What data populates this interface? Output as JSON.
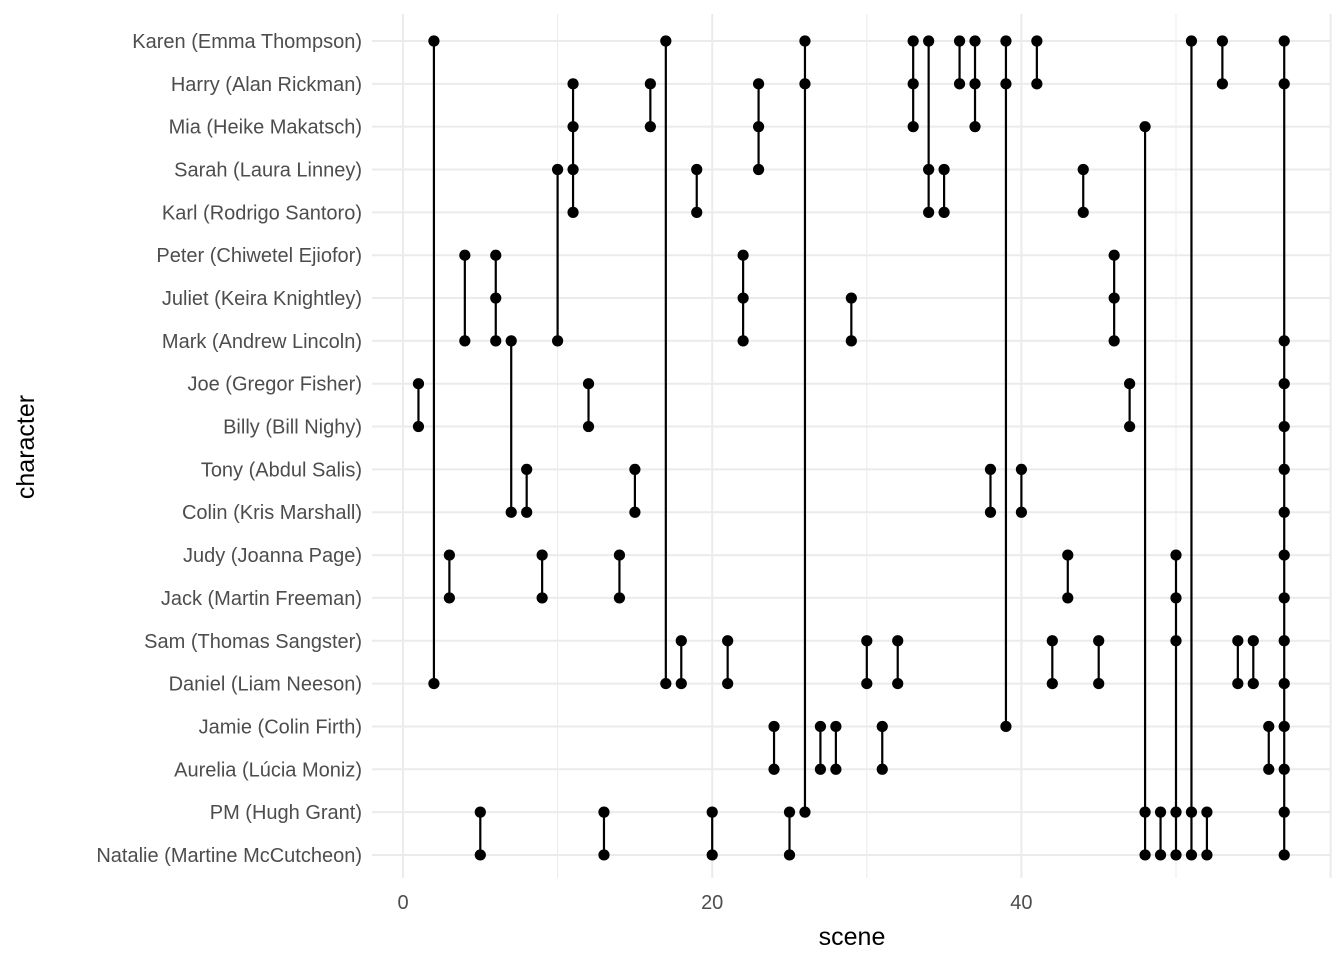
{
  "chart_data": {
    "type": "dot-dumbbell",
    "xlabel": "scene",
    "ylabel": "character",
    "xlim": [
      0,
      57
    ],
    "x_ticks": [
      0,
      20,
      40
    ],
    "grid": true,
    "legend": "none",
    "colors": {
      "mark": "#000000",
      "grid": "#ebebeb",
      "tick_text": "#4d4d4d"
    },
    "characters": [
      "Karen (Emma Thompson)",
      "Harry (Alan Rickman)",
      "Mia (Heike Makatsch)",
      "Sarah (Laura Linney)",
      "Karl (Rodrigo Santoro)",
      "Peter (Chiwetel Ejiofor)",
      "Juliet (Keira Knightley)",
      "Mark (Andrew Lincoln)",
      "Joe (Gregor Fisher)",
      "Billy (Bill Nighy)",
      "Tony (Abdul Salis)",
      "Colin (Kris Marshall)",
      "Judy (Joanna Page)",
      "Jack (Martin Freeman)",
      "Sam (Thomas Sangster)",
      "Daniel (Liam Neeson)",
      "Jamie (Colin Firth)",
      "Aurelia (Lúcia Moniz)",
      "PM (Hugh Grant)",
      "Natalie (Martine McCutcheon)"
    ],
    "scenes": [
      {
        "scene": 1,
        "characters": [
          "Joe (Gregor Fisher)",
          "Billy (Bill Nighy)"
        ]
      },
      {
        "scene": 2,
        "characters": [
          "Karen (Emma Thompson)",
          "Daniel (Liam Neeson)"
        ]
      },
      {
        "scene": 3,
        "characters": [
          "Judy (Joanna Page)",
          "Jack (Martin Freeman)"
        ]
      },
      {
        "scene": 4,
        "characters": [
          "Peter (Chiwetel Ejiofor)",
          "Mark (Andrew Lincoln)"
        ]
      },
      {
        "scene": 5,
        "characters": [
          "PM (Hugh Grant)",
          "Natalie (Martine McCutcheon)"
        ]
      },
      {
        "scene": 6,
        "characters": [
          "Peter (Chiwetel Ejiofor)",
          "Juliet (Keira Knightley)",
          "Mark (Andrew Lincoln)"
        ]
      },
      {
        "scene": 7,
        "characters": [
          "Mark (Andrew Lincoln)",
          "Colin (Kris Marshall)"
        ]
      },
      {
        "scene": 8,
        "characters": [
          "Tony (Abdul Salis)",
          "Colin (Kris Marshall)"
        ]
      },
      {
        "scene": 9,
        "characters": [
          "Judy (Joanna Page)",
          "Jack (Martin Freeman)"
        ]
      },
      {
        "scene": 10,
        "characters": [
          "Sarah (Laura Linney)",
          "Mark (Andrew Lincoln)"
        ]
      },
      {
        "scene": 11,
        "characters": [
          "Harry (Alan Rickman)",
          "Mia (Heike Makatsch)",
          "Sarah (Laura Linney)",
          "Karl (Rodrigo Santoro)"
        ]
      },
      {
        "scene": 12,
        "characters": [
          "Joe (Gregor Fisher)",
          "Billy (Bill Nighy)"
        ]
      },
      {
        "scene": 13,
        "characters": [
          "PM (Hugh Grant)",
          "Natalie (Martine McCutcheon)"
        ]
      },
      {
        "scene": 14,
        "characters": [
          "Judy (Joanna Page)",
          "Jack (Martin Freeman)"
        ]
      },
      {
        "scene": 15,
        "characters": [
          "Tony (Abdul Salis)",
          "Colin (Kris Marshall)"
        ]
      },
      {
        "scene": 16,
        "characters": [
          "Harry (Alan Rickman)",
          "Mia (Heike Makatsch)"
        ]
      },
      {
        "scene": 17,
        "characters": [
          "Karen (Emma Thompson)",
          "Daniel (Liam Neeson)"
        ]
      },
      {
        "scene": 18,
        "characters": [
          "Sam (Thomas Sangster)",
          "Daniel (Liam Neeson)"
        ]
      },
      {
        "scene": 19,
        "characters": [
          "Sarah (Laura Linney)",
          "Karl (Rodrigo Santoro)"
        ]
      },
      {
        "scene": 20,
        "characters": [
          "PM (Hugh Grant)",
          "Natalie (Martine McCutcheon)"
        ]
      },
      {
        "scene": 21,
        "characters": [
          "Sam (Thomas Sangster)",
          "Daniel (Liam Neeson)"
        ]
      },
      {
        "scene": 22,
        "characters": [
          "Peter (Chiwetel Ejiofor)",
          "Juliet (Keira Knightley)",
          "Mark (Andrew Lincoln)"
        ]
      },
      {
        "scene": 23,
        "characters": [
          "Harry (Alan Rickman)",
          "Mia (Heike Makatsch)",
          "Sarah (Laura Linney)"
        ]
      },
      {
        "scene": 24,
        "characters": [
          "Jamie (Colin Firth)",
          "Aurelia (Lúcia Moniz)"
        ]
      },
      {
        "scene": 25,
        "characters": [
          "PM (Hugh Grant)",
          "Natalie (Martine McCutcheon)"
        ]
      },
      {
        "scene": 26,
        "characters": [
          "Karen (Emma Thompson)",
          "Harry (Alan Rickman)",
          "PM (Hugh Grant)"
        ]
      },
      {
        "scene": 27,
        "characters": [
          "Jamie (Colin Firth)",
          "Aurelia (Lúcia Moniz)"
        ]
      },
      {
        "scene": 28,
        "characters": [
          "Jamie (Colin Firth)",
          "Aurelia (Lúcia Moniz)"
        ]
      },
      {
        "scene": 29,
        "characters": [
          "Juliet (Keira Knightley)",
          "Mark (Andrew Lincoln)"
        ]
      },
      {
        "scene": 30,
        "characters": [
          "Sam (Thomas Sangster)",
          "Daniel (Liam Neeson)"
        ]
      },
      {
        "scene": 31,
        "characters": [
          "Jamie (Colin Firth)",
          "Aurelia (Lúcia Moniz)"
        ]
      },
      {
        "scene": 32,
        "characters": [
          "Sam (Thomas Sangster)",
          "Daniel (Liam Neeson)"
        ]
      },
      {
        "scene": 33,
        "characters": [
          "Karen (Emma Thompson)",
          "Harry (Alan Rickman)",
          "Mia (Heike Makatsch)"
        ]
      },
      {
        "scene": 34,
        "characters": [
          "Karen (Emma Thompson)",
          "Sarah (Laura Linney)",
          "Karl (Rodrigo Santoro)"
        ]
      },
      {
        "scene": 35,
        "characters": [
          "Sarah (Laura Linney)",
          "Karl (Rodrigo Santoro)"
        ]
      },
      {
        "scene": 36,
        "characters": [
          "Karen (Emma Thompson)",
          "Harry (Alan Rickman)"
        ]
      },
      {
        "scene": 37,
        "characters": [
          "Karen (Emma Thompson)",
          "Harry (Alan Rickman)",
          "Mia (Heike Makatsch)"
        ]
      },
      {
        "scene": 38,
        "characters": [
          "Tony (Abdul Salis)",
          "Colin (Kris Marshall)"
        ]
      },
      {
        "scene": 39,
        "characters": [
          "Karen (Emma Thompson)",
          "Harry (Alan Rickman)",
          "Jamie (Colin Firth)"
        ]
      },
      {
        "scene": 40,
        "characters": [
          "Tony (Abdul Salis)",
          "Colin (Kris Marshall)"
        ]
      },
      {
        "scene": 41,
        "characters": [
          "Karen (Emma Thompson)",
          "Harry (Alan Rickman)"
        ]
      },
      {
        "scene": 42,
        "characters": [
          "Sam (Thomas Sangster)",
          "Daniel (Liam Neeson)"
        ]
      },
      {
        "scene": 43,
        "characters": [
          "Judy (Joanna Page)",
          "Jack (Martin Freeman)"
        ]
      },
      {
        "scene": 44,
        "characters": [
          "Sarah (Laura Linney)",
          "Karl (Rodrigo Santoro)"
        ]
      },
      {
        "scene": 45,
        "characters": [
          "Sam (Thomas Sangster)",
          "Daniel (Liam Neeson)"
        ]
      },
      {
        "scene": 46,
        "characters": [
          "Peter (Chiwetel Ejiofor)",
          "Juliet (Keira Knightley)",
          "Mark (Andrew Lincoln)"
        ]
      },
      {
        "scene": 47,
        "characters": [
          "Joe (Gregor Fisher)",
          "Billy (Bill Nighy)"
        ]
      },
      {
        "scene": 48,
        "characters": [
          "Mia (Heike Makatsch)",
          "PM (Hugh Grant)",
          "Natalie (Martine McCutcheon)"
        ]
      },
      {
        "scene": 49,
        "characters": [
          "PM (Hugh Grant)",
          "Natalie (Martine McCutcheon)"
        ]
      },
      {
        "scene": 50,
        "characters": [
          "Judy (Joanna Page)",
          "Jack (Martin Freeman)",
          "Sam (Thomas Sangster)",
          "PM (Hugh Grant)",
          "Natalie (Martine McCutcheon)"
        ]
      },
      {
        "scene": 51,
        "characters": [
          "Karen (Emma Thompson)",
          "PM (Hugh Grant)",
          "Natalie (Martine McCutcheon)"
        ]
      },
      {
        "scene": 52,
        "characters": [
          "PM (Hugh Grant)",
          "Natalie (Martine McCutcheon)"
        ]
      },
      {
        "scene": 53,
        "characters": [
          "Karen (Emma Thompson)",
          "Harry (Alan Rickman)"
        ]
      },
      {
        "scene": 54,
        "characters": [
          "Sam (Thomas Sangster)",
          "Daniel (Liam Neeson)"
        ]
      },
      {
        "scene": 55,
        "characters": [
          "Sam (Thomas Sangster)",
          "Daniel (Liam Neeson)"
        ]
      },
      {
        "scene": 56,
        "characters": [
          "Jamie (Colin Firth)",
          "Aurelia (Lúcia Moniz)"
        ]
      },
      {
        "scene": 57,
        "characters": [
          "Karen (Emma Thompson)",
          "Harry (Alan Rickman)",
          "Mark (Andrew Lincoln)",
          "Joe (Gregor Fisher)",
          "Billy (Bill Nighy)",
          "Tony (Abdul Salis)",
          "Colin (Kris Marshall)",
          "Judy (Joanna Page)",
          "Jack (Martin Freeman)",
          "Sam (Thomas Sangster)",
          "Daniel (Liam Neeson)",
          "Jamie (Colin Firth)",
          "Aurelia (Lúcia Moniz)",
          "PM (Hugh Grant)",
          "Natalie (Martine McCutcheon)"
        ]
      }
    ]
  }
}
